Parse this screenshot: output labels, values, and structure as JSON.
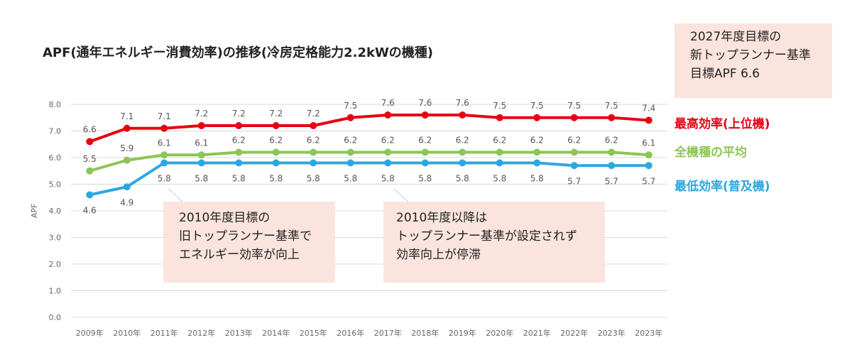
{
  "title": "APF(通年エネルギー消費効率)の推移(冷房定格能力2.2kWの機種)",
  "target_box": {
    "lines": [
      "2027年度目標の",
      "新トップランナー基準",
      "目標APF 6.6"
    ]
  },
  "notes": [
    {
      "lines": [
        "2010年度目標の",
        "旧トップランナー基準で",
        "エネルギー効率が向上"
      ]
    },
    {
      "lines": [
        "2010年度以降は",
        "トップランナー基準が設定されず",
        "効率向上が停滞"
      ]
    }
  ],
  "chart_data": {
    "type": "line",
    "ylabel": "APF",
    "xlabel": "",
    "ylim": [
      0,
      8
    ],
    "yticks": [
      "0.0",
      "1.0",
      "2.0",
      "3.0",
      "4.0",
      "5.0",
      "6.0",
      "7.0",
      "8.0"
    ],
    "categories": [
      "2009年",
      "2010年",
      "2011年",
      "2012年",
      "2013年",
      "2014年",
      "2015年",
      "2016年",
      "2017年",
      "2018年",
      "2019年",
      "2020年",
      "2021年",
      "2022年",
      "2023年",
      "2023年"
    ],
    "grid": true,
    "legend_placement": "right",
    "series": [
      {
        "name": "最高効率(上位機)",
        "color": "#e60012",
        "label_position": "above",
        "values": [
          6.6,
          7.1,
          7.1,
          7.2,
          7.2,
          7.2,
          7.2,
          7.5,
          7.6,
          7.6,
          7.6,
          7.5,
          7.5,
          7.5,
          7.5,
          7.4
        ]
      },
      {
        "name": "全機種の平均",
        "color": "#8dc556",
        "label_position": "above",
        "values": [
          5.5,
          5.9,
          6.1,
          6.1,
          6.2,
          6.2,
          6.2,
          6.2,
          6.2,
          6.2,
          6.2,
          6.2,
          6.2,
          6.2,
          6.2,
          6.1
        ]
      },
      {
        "name": "最低効率(普及機)",
        "color": "#2ea7e0",
        "label_position": "below",
        "values": [
          4.6,
          4.9,
          5.8,
          5.8,
          5.8,
          5.8,
          5.8,
          5.8,
          5.8,
          5.8,
          5.8,
          5.8,
          5.8,
          5.7,
          5.7,
          5.7
        ]
      }
    ]
  }
}
